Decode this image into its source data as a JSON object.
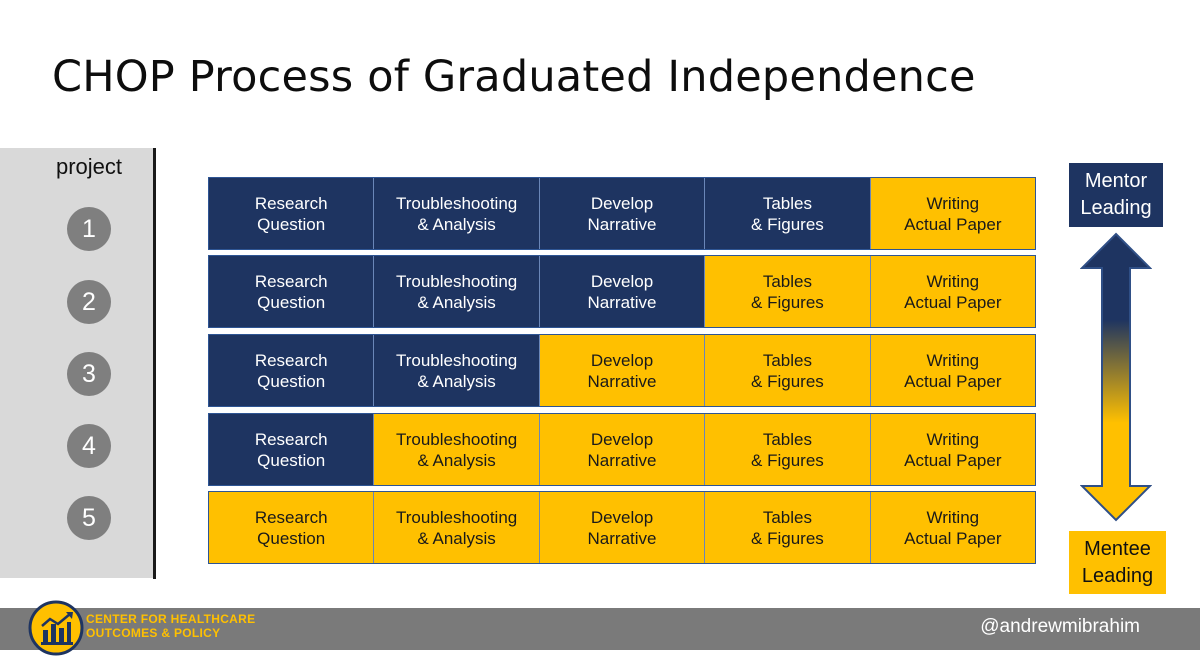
{
  "title": "CHOP Process of Graduated Independence",
  "sidebar": {
    "label": "project",
    "numbers": [
      "1",
      "2",
      "3",
      "4",
      "5"
    ]
  },
  "colors": {
    "mentor": "#1e3461",
    "mentee": "#ffc000"
  },
  "rows": [
    {
      "cells": [
        {
          "text": "Research\nQuestion",
          "role": "mentor"
        },
        {
          "text": "Troubleshooting\n& Analysis",
          "role": "mentor"
        },
        {
          "text": "Develop\nNarrative",
          "role": "mentor"
        },
        {
          "text": "Tables\n& Figures",
          "role": "mentor"
        },
        {
          "text": "Writing\nActual Paper",
          "role": "mentee"
        }
      ]
    },
    {
      "cells": [
        {
          "text": "Research\nQuestion",
          "role": "mentor"
        },
        {
          "text": "Troubleshooting\n& Analysis",
          "role": "mentor"
        },
        {
          "text": "Develop\nNarrative",
          "role": "mentor"
        },
        {
          "text": "Tables\n& Figures",
          "role": "mentee"
        },
        {
          "text": "Writing\nActual Paper",
          "role": "mentee"
        }
      ]
    },
    {
      "cells": [
        {
          "text": "Research\nQuestion",
          "role": "mentor"
        },
        {
          "text": "Troubleshooting\n& Analysis",
          "role": "mentor"
        },
        {
          "text": "Develop\nNarrative",
          "role": "mentee"
        },
        {
          "text": "Tables\n& Figures",
          "role": "mentee"
        },
        {
          "text": "Writing\nActual Paper",
          "role": "mentee"
        }
      ]
    },
    {
      "cells": [
        {
          "text": "Research\nQuestion",
          "role": "mentor"
        },
        {
          "text": "Troubleshooting\n& Analysis",
          "role": "mentee"
        },
        {
          "text": "Develop\nNarrative",
          "role": "mentee"
        },
        {
          "text": "Tables\n& Figures",
          "role": "mentee"
        },
        {
          "text": "Writing\nActual Paper",
          "role": "mentee"
        }
      ]
    },
    {
      "cells": [
        {
          "text": "Research\nQuestion",
          "role": "mentee"
        },
        {
          "text": "Troubleshooting\n& Analysis",
          "role": "mentee"
        },
        {
          "text": "Develop\nNarrative",
          "role": "mentee"
        },
        {
          "text": "Tables\n& Figures",
          "role": "mentee"
        },
        {
          "text": "Writing\nActual Paper",
          "role": "mentee"
        }
      ]
    }
  ],
  "legend": {
    "top": "Mentor\nLeading",
    "bottom": "Mentee\nLeading"
  },
  "footer": {
    "org_name": "CENTER FOR HEALTHCARE\nOUTCOMES & POLICY",
    "handle": "@andrewmibrahim",
    "logo_icon": "bar-chart-building-logo"
  }
}
